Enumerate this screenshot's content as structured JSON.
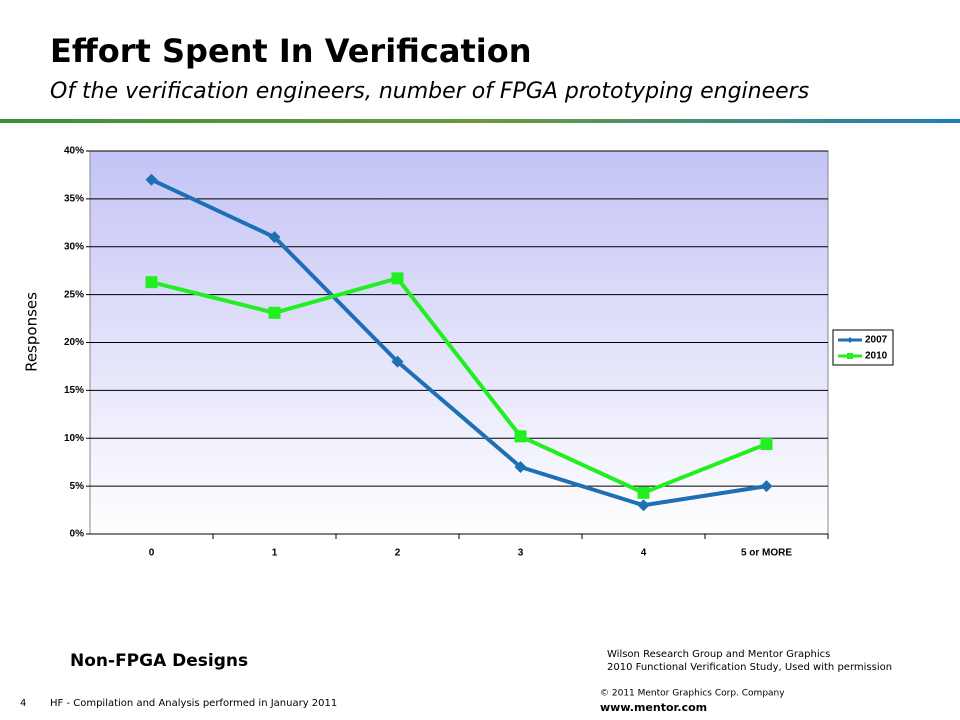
{
  "slide": {
    "title": "Effort Spent In Verification",
    "subtitle": "Of the verification engineers, number of FPGA prototyping engineers",
    "caption": "Non-FPGA Designs",
    "source": [
      "Wilson Research Group and Mentor Graphics",
      "2010 Functional Verification Study,  Used with permission"
    ],
    "copyright": "© 2011 Mentor Graphics Corp. Company",
    "website": "www.mentor.com",
    "page_number": "4",
    "footer": "HF - Compilation and Analysis performed in January 2011"
  },
  "chart_data": {
    "type": "line",
    "y_label": "Responses",
    "categories": [
      "0",
      "1",
      "2",
      "3",
      "4",
      "5 or MORE"
    ],
    "series": [
      {
        "name": "2007",
        "color": "#1f6fb4",
        "marker": "diamond",
        "values": [
          37,
          31,
          18,
          7,
          3,
          5
        ]
      },
      {
        "name": "2010",
        "color": "#22ee22",
        "marker": "square",
        "values": [
          26.3,
          23.1,
          26.7,
          10.2,
          4.3,
          9.4
        ]
      }
    ],
    "ylim": [
      0,
      40
    ],
    "yticks": [
      {
        "value": 0,
        "label": "0%"
      },
      {
        "value": 5,
        "label": "5%"
      },
      {
        "value": 10,
        "label": "10%"
      },
      {
        "value": 15,
        "label": "15%"
      },
      {
        "value": 20,
        "label": "20%"
      },
      {
        "value": 25,
        "label": "25%"
      },
      {
        "value": 30,
        "label": "30%"
      },
      {
        "value": 35,
        "label": "35%"
      },
      {
        "value": 40,
        "label": "40%"
      }
    ],
    "grid": true,
    "legend": "right"
  }
}
